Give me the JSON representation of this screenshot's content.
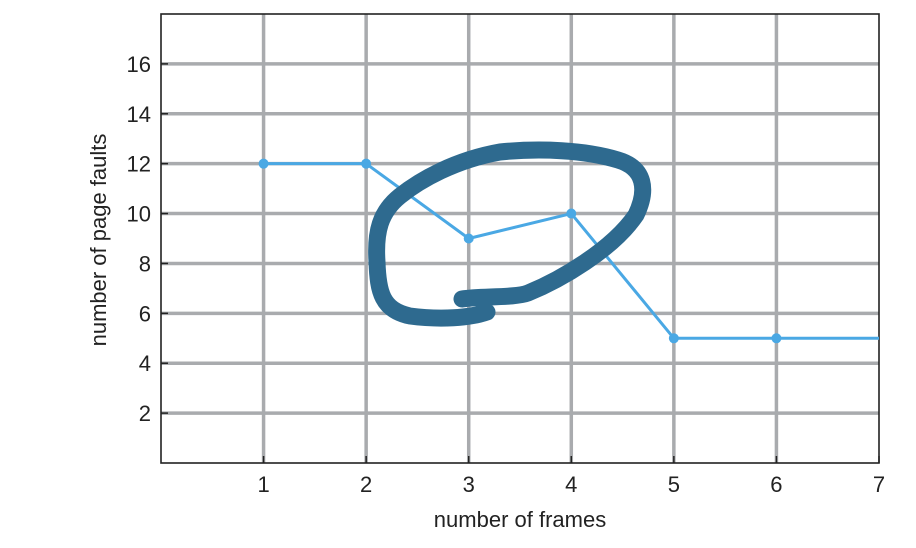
{
  "chart_data": {
    "type": "line",
    "xlabel": "number of frames",
    "ylabel": "number of page faults",
    "xlim": [
      0,
      7
    ],
    "ylim": [
      0,
      18
    ],
    "xticks": [
      1,
      2,
      3,
      4,
      5,
      6,
      7
    ],
    "yticks": [
      2,
      4,
      6,
      8,
      10,
      12,
      14,
      16
    ],
    "grid": true,
    "series": [
      {
        "x": [
          1,
          2,
          3,
          4,
          5,
          6,
          7
        ],
        "values": [
          12,
          12,
          9,
          10,
          5,
          5,
          5
        ],
        "markers": [
          true,
          true,
          true,
          true,
          true,
          true,
          false
        ]
      }
    ],
    "colors": {
      "line": "#4aa8e4",
      "grid": "#a9abae",
      "axis": "#222222",
      "annotation": "#2e6a8f"
    },
    "annotation": {
      "type": "hand-drawn-circle",
      "encloses_x": [
        3,
        4
      ]
    }
  }
}
